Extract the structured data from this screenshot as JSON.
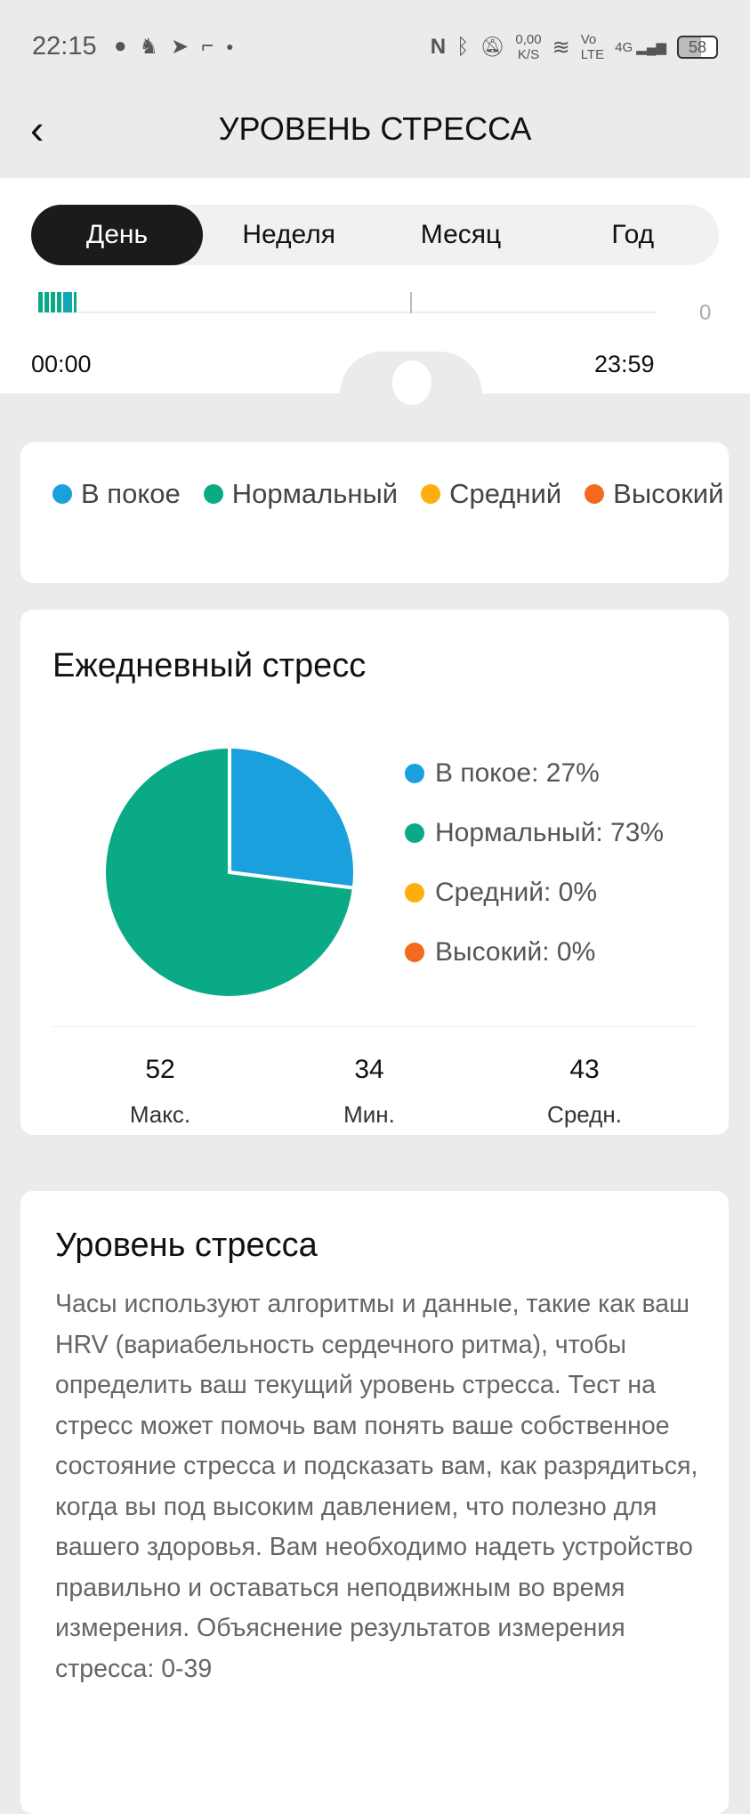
{
  "status_bar": {
    "time": "22:15",
    "net_speed": "0,00",
    "net_unit": "K/S",
    "volte_top": "Vo",
    "volte_bottom": "LTE",
    "network": "4G",
    "battery": "58"
  },
  "header": {
    "title": "УРОВЕНЬ СТРЕССА"
  },
  "tabs": [
    {
      "label": "День",
      "active": true
    },
    {
      "label": "Неделя"
    },
    {
      "label": "Месяц"
    },
    {
      "label": "Год"
    }
  ],
  "timeline": {
    "start": "00:00",
    "end": "23:59",
    "axis_value": "0"
  },
  "legend": [
    {
      "label": "В покое",
      "color": "#1aa0dd"
    },
    {
      "label": "Нормальный",
      "color": "#0aaa86"
    },
    {
      "label": "Средний",
      "color": "#ffae0d"
    },
    {
      "label": "Высокий",
      "color": "#f26a1f"
    }
  ],
  "daily": {
    "title": "Ежедневный стресс",
    "items": [
      {
        "label": "В покое: 27%"
      },
      {
        "label": "Нормальный: 73%"
      },
      {
        "label": "Средний: 0%"
      },
      {
        "label": "Высокий: 0%"
      }
    ],
    "stats": [
      {
        "value": "52",
        "label": "Макс."
      },
      {
        "value": "34",
        "label": "Мин."
      },
      {
        "value": "43",
        "label": "Средн."
      }
    ]
  },
  "chart_data": {
    "type": "pie",
    "title": "Ежедневный стресс",
    "categories": [
      "В покое",
      "Нормальный",
      "Средний",
      "Высокий"
    ],
    "values": [
      27,
      73,
      0,
      0
    ]
  },
  "description": {
    "title": "Уровень стресса",
    "text": "Часы используют алгоритмы и данные, такие как ваш HRV (вариабельность сердечного ритма), чтобы определить ваш текущий уровень стресса. Тест на стресс может помочь вам понять ваше собственное состояние стресса и подсказать вам, как разрядиться, когда вы под высоким давлением, что полезно для вашего здоровья. Вам необходимо надеть устройство правильно и оставаться неподвижным во время измерения. Объяснение результатов измерения стресса: 0-39"
  }
}
